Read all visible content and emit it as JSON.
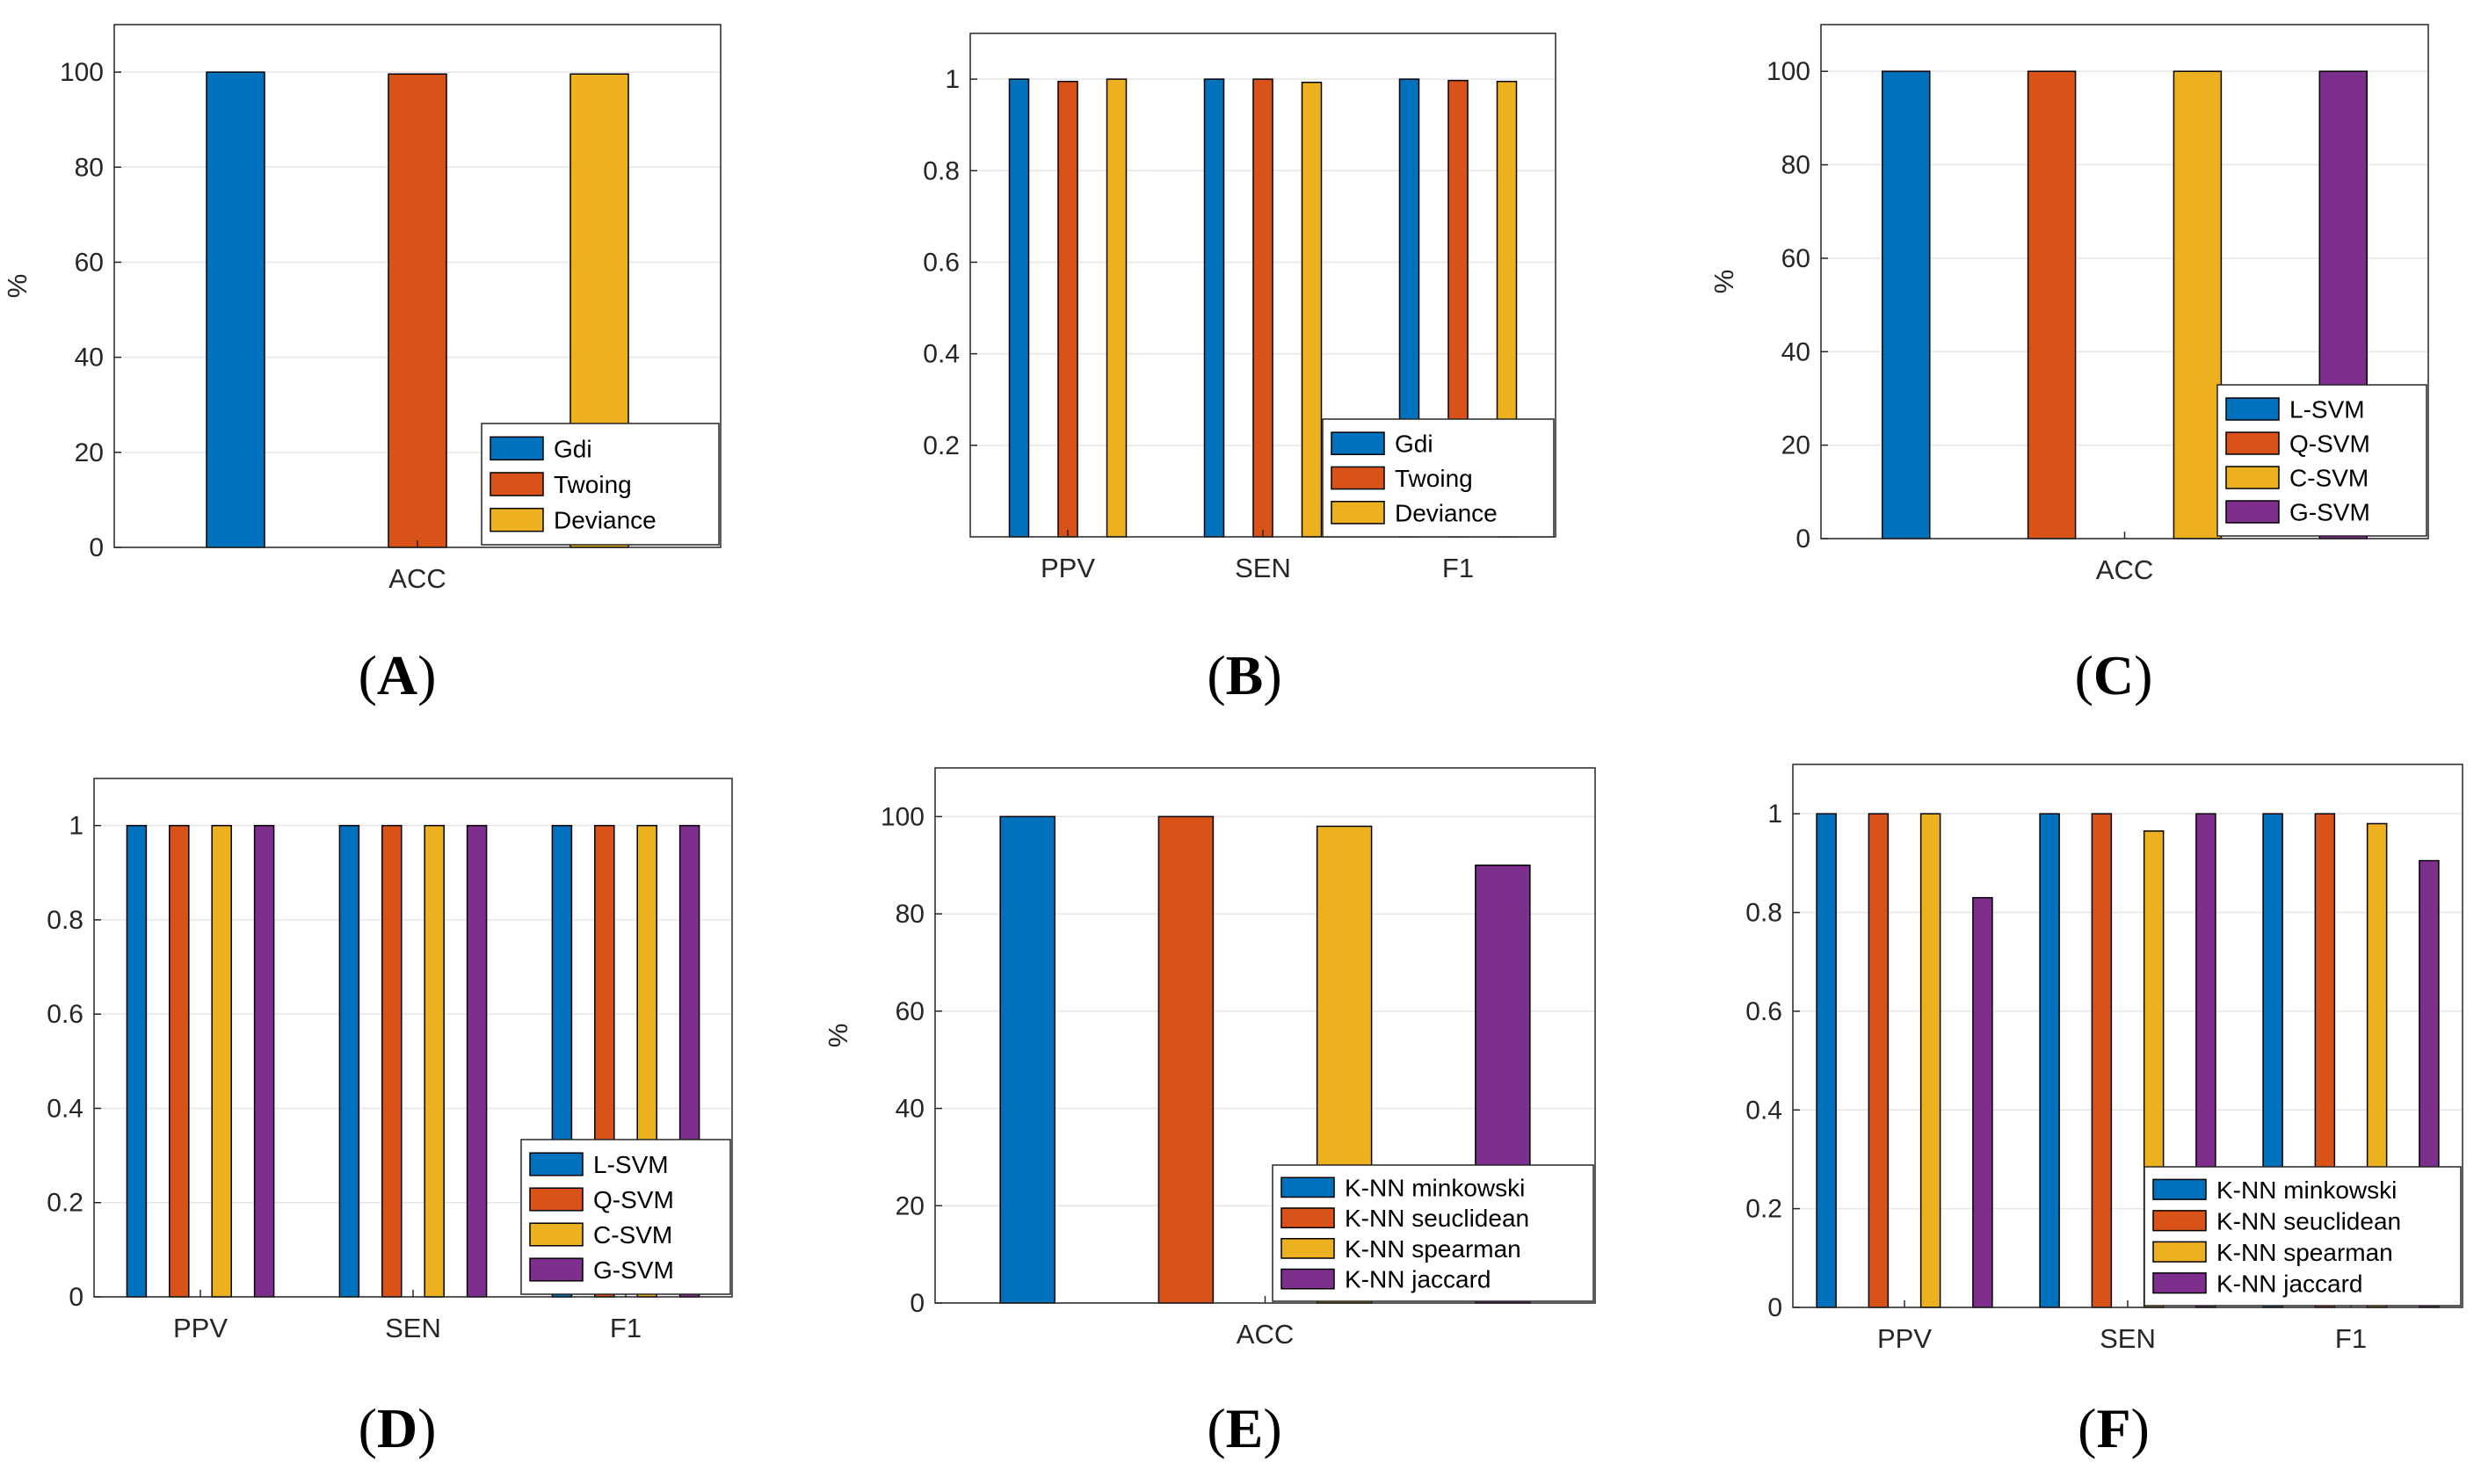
{
  "colors": {
    "blue": "#0072bd",
    "orange": "#d95319",
    "yellow": "#edb120",
    "purple": "#7e2f8e",
    "grid": "#e6e6e6",
    "axis": "#262626"
  },
  "chart_data": [
    {
      "type": "bar",
      "panel": "A",
      "ylabel": "%",
      "ylim": [
        0,
        110
      ],
      "yticks": [
        0,
        20,
        40,
        60,
        80,
        100
      ],
      "ytick_labels": [
        "0",
        "20",
        "40",
        "60",
        "80",
        "100"
      ],
      "categories": [
        "ACC"
      ],
      "legend_location": "bottom-right",
      "series": [
        {
          "name": "Gdi",
          "values": [
            100
          ]
        },
        {
          "name": "Twoing",
          "values": [
            99.6
          ]
        },
        {
          "name": "Deviance",
          "values": [
            99.6
          ]
        }
      ]
    },
    {
      "type": "bar",
      "panel": "B",
      "ylabel": "",
      "ylim": [
        0,
        1.1
      ],
      "yticks": [
        0.2,
        0.4,
        0.6,
        0.8,
        1
      ],
      "ytick_labels": [
        "0.2",
        "0.4",
        "0.6",
        "0.8",
        "1"
      ],
      "categories": [
        "PPV",
        "SEN",
        "F1"
      ],
      "legend_location": "bottom-right",
      "series": [
        {
          "name": "Gdi",
          "values": [
            1.0,
            1.0,
            1.0
          ]
        },
        {
          "name": "Twoing",
          "values": [
            0.995,
            1.0,
            0.997
          ]
        },
        {
          "name": "Deviance",
          "values": [
            1.0,
            0.993,
            0.995
          ]
        }
      ]
    },
    {
      "type": "bar",
      "panel": "C",
      "ylabel": "%",
      "ylim": [
        0,
        110
      ],
      "yticks": [
        0,
        20,
        40,
        60,
        80,
        100
      ],
      "ytick_labels": [
        "0",
        "20",
        "40",
        "60",
        "80",
        "100"
      ],
      "categories": [
        "ACC"
      ],
      "legend_location": "bottom-right",
      "series": [
        {
          "name": "L-SVM",
          "values": [
            100
          ]
        },
        {
          "name": "Q-SVM",
          "values": [
            100
          ]
        },
        {
          "name": "C-SVM",
          "values": [
            100
          ]
        },
        {
          "name": "G-SVM",
          "values": [
            100
          ]
        }
      ]
    },
    {
      "type": "bar",
      "panel": "D",
      "ylabel": "-",
      "ylim": [
        0,
        1.1
      ],
      "yticks": [
        0,
        0.2,
        0.4,
        0.6,
        0.8,
        1
      ],
      "ytick_labels": [
        "0",
        "0.2",
        "0.4",
        "0.6",
        "0.8",
        "1"
      ],
      "categories": [
        "PPV",
        "SEN",
        "F1"
      ],
      "legend_location": "bottom-right",
      "series": [
        {
          "name": "L-SVM",
          "values": [
            1,
            1,
            1
          ]
        },
        {
          "name": "Q-SVM",
          "values": [
            1,
            1,
            1
          ]
        },
        {
          "name": "C-SVM",
          "values": [
            1,
            1,
            1
          ]
        },
        {
          "name": "G-SVM",
          "values": [
            1,
            1,
            1
          ]
        }
      ]
    },
    {
      "type": "bar",
      "panel": "E",
      "ylabel": "%",
      "ylim": [
        0,
        110
      ],
      "yticks": [
        0,
        20,
        40,
        60,
        80,
        100
      ],
      "ytick_labels": [
        "0",
        "20",
        "40",
        "60",
        "80",
        "100"
      ],
      "categories": [
        "ACC"
      ],
      "legend_location": "bottom-right",
      "series": [
        {
          "name": "K-NN minkowski",
          "values": [
            100
          ]
        },
        {
          "name": "K-NN seuclidean",
          "values": [
            100
          ]
        },
        {
          "name": "K-NN spearman",
          "values": [
            98
          ]
        },
        {
          "name": "K-NN jaccard",
          "values": [
            90
          ]
        }
      ]
    },
    {
      "type": "bar",
      "panel": "F",
      "ylabel": "",
      "ylim": [
        0,
        1.1
      ],
      "yticks": [
        0,
        0.2,
        0.4,
        0.6,
        0.8,
        1
      ],
      "ytick_labels": [
        "0",
        "0.2",
        "0.4",
        "0.6",
        "0.8",
        "1"
      ],
      "categories": [
        "PPV",
        "SEN",
        "F1"
      ],
      "legend_location": "bottom-right",
      "series": [
        {
          "name": "K-NN minkowski",
          "values": [
            1,
            1,
            1
          ]
        },
        {
          "name": "K-NN seuclidean",
          "values": [
            1,
            1,
            1
          ]
        },
        {
          "name": "K-NN spearman",
          "values": [
            1,
            0.965,
            0.98
          ]
        },
        {
          "name": "K-NN jaccard",
          "values": [
            0.83,
            1,
            0.905
          ]
        }
      ]
    }
  ],
  "panel_labels": [
    {
      "letter": "A"
    },
    {
      "letter": "B"
    },
    {
      "letter": "C"
    },
    {
      "letter": "D"
    },
    {
      "letter": "E"
    },
    {
      "letter": "F"
    }
  ]
}
